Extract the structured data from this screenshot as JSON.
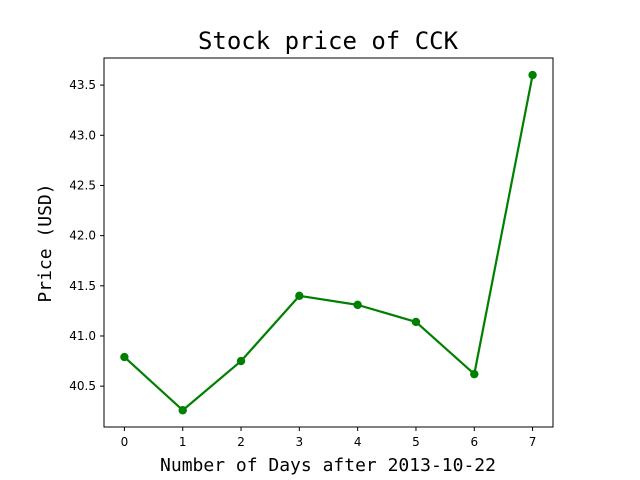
{
  "chart_data": {
    "type": "line",
    "title": "Stock price of CCK",
    "xlabel": "Number of Days after 2013-10-22",
    "ylabel": "Price (USD)",
    "x": [
      0,
      1,
      2,
      3,
      4,
      5,
      6,
      7
    ],
    "series": [
      {
        "values": [
          40.79,
          40.26,
          40.75,
          41.4,
          41.31,
          41.14,
          40.62,
          43.6
        ],
        "color": "#008000",
        "marker": "circle"
      }
    ],
    "xticks": [
      "0",
      "1",
      "2",
      "3",
      "4",
      "5",
      "6",
      "7"
    ],
    "yticks": [
      "40.5",
      "41.0",
      "41.5",
      "42.0",
      "42.5",
      "43.0",
      "43.5"
    ],
    "xlim": [
      -0.35,
      7.35
    ],
    "ylim": [
      40.093,
      43.77
    ],
    "grid": false,
    "legend": "none"
  }
}
